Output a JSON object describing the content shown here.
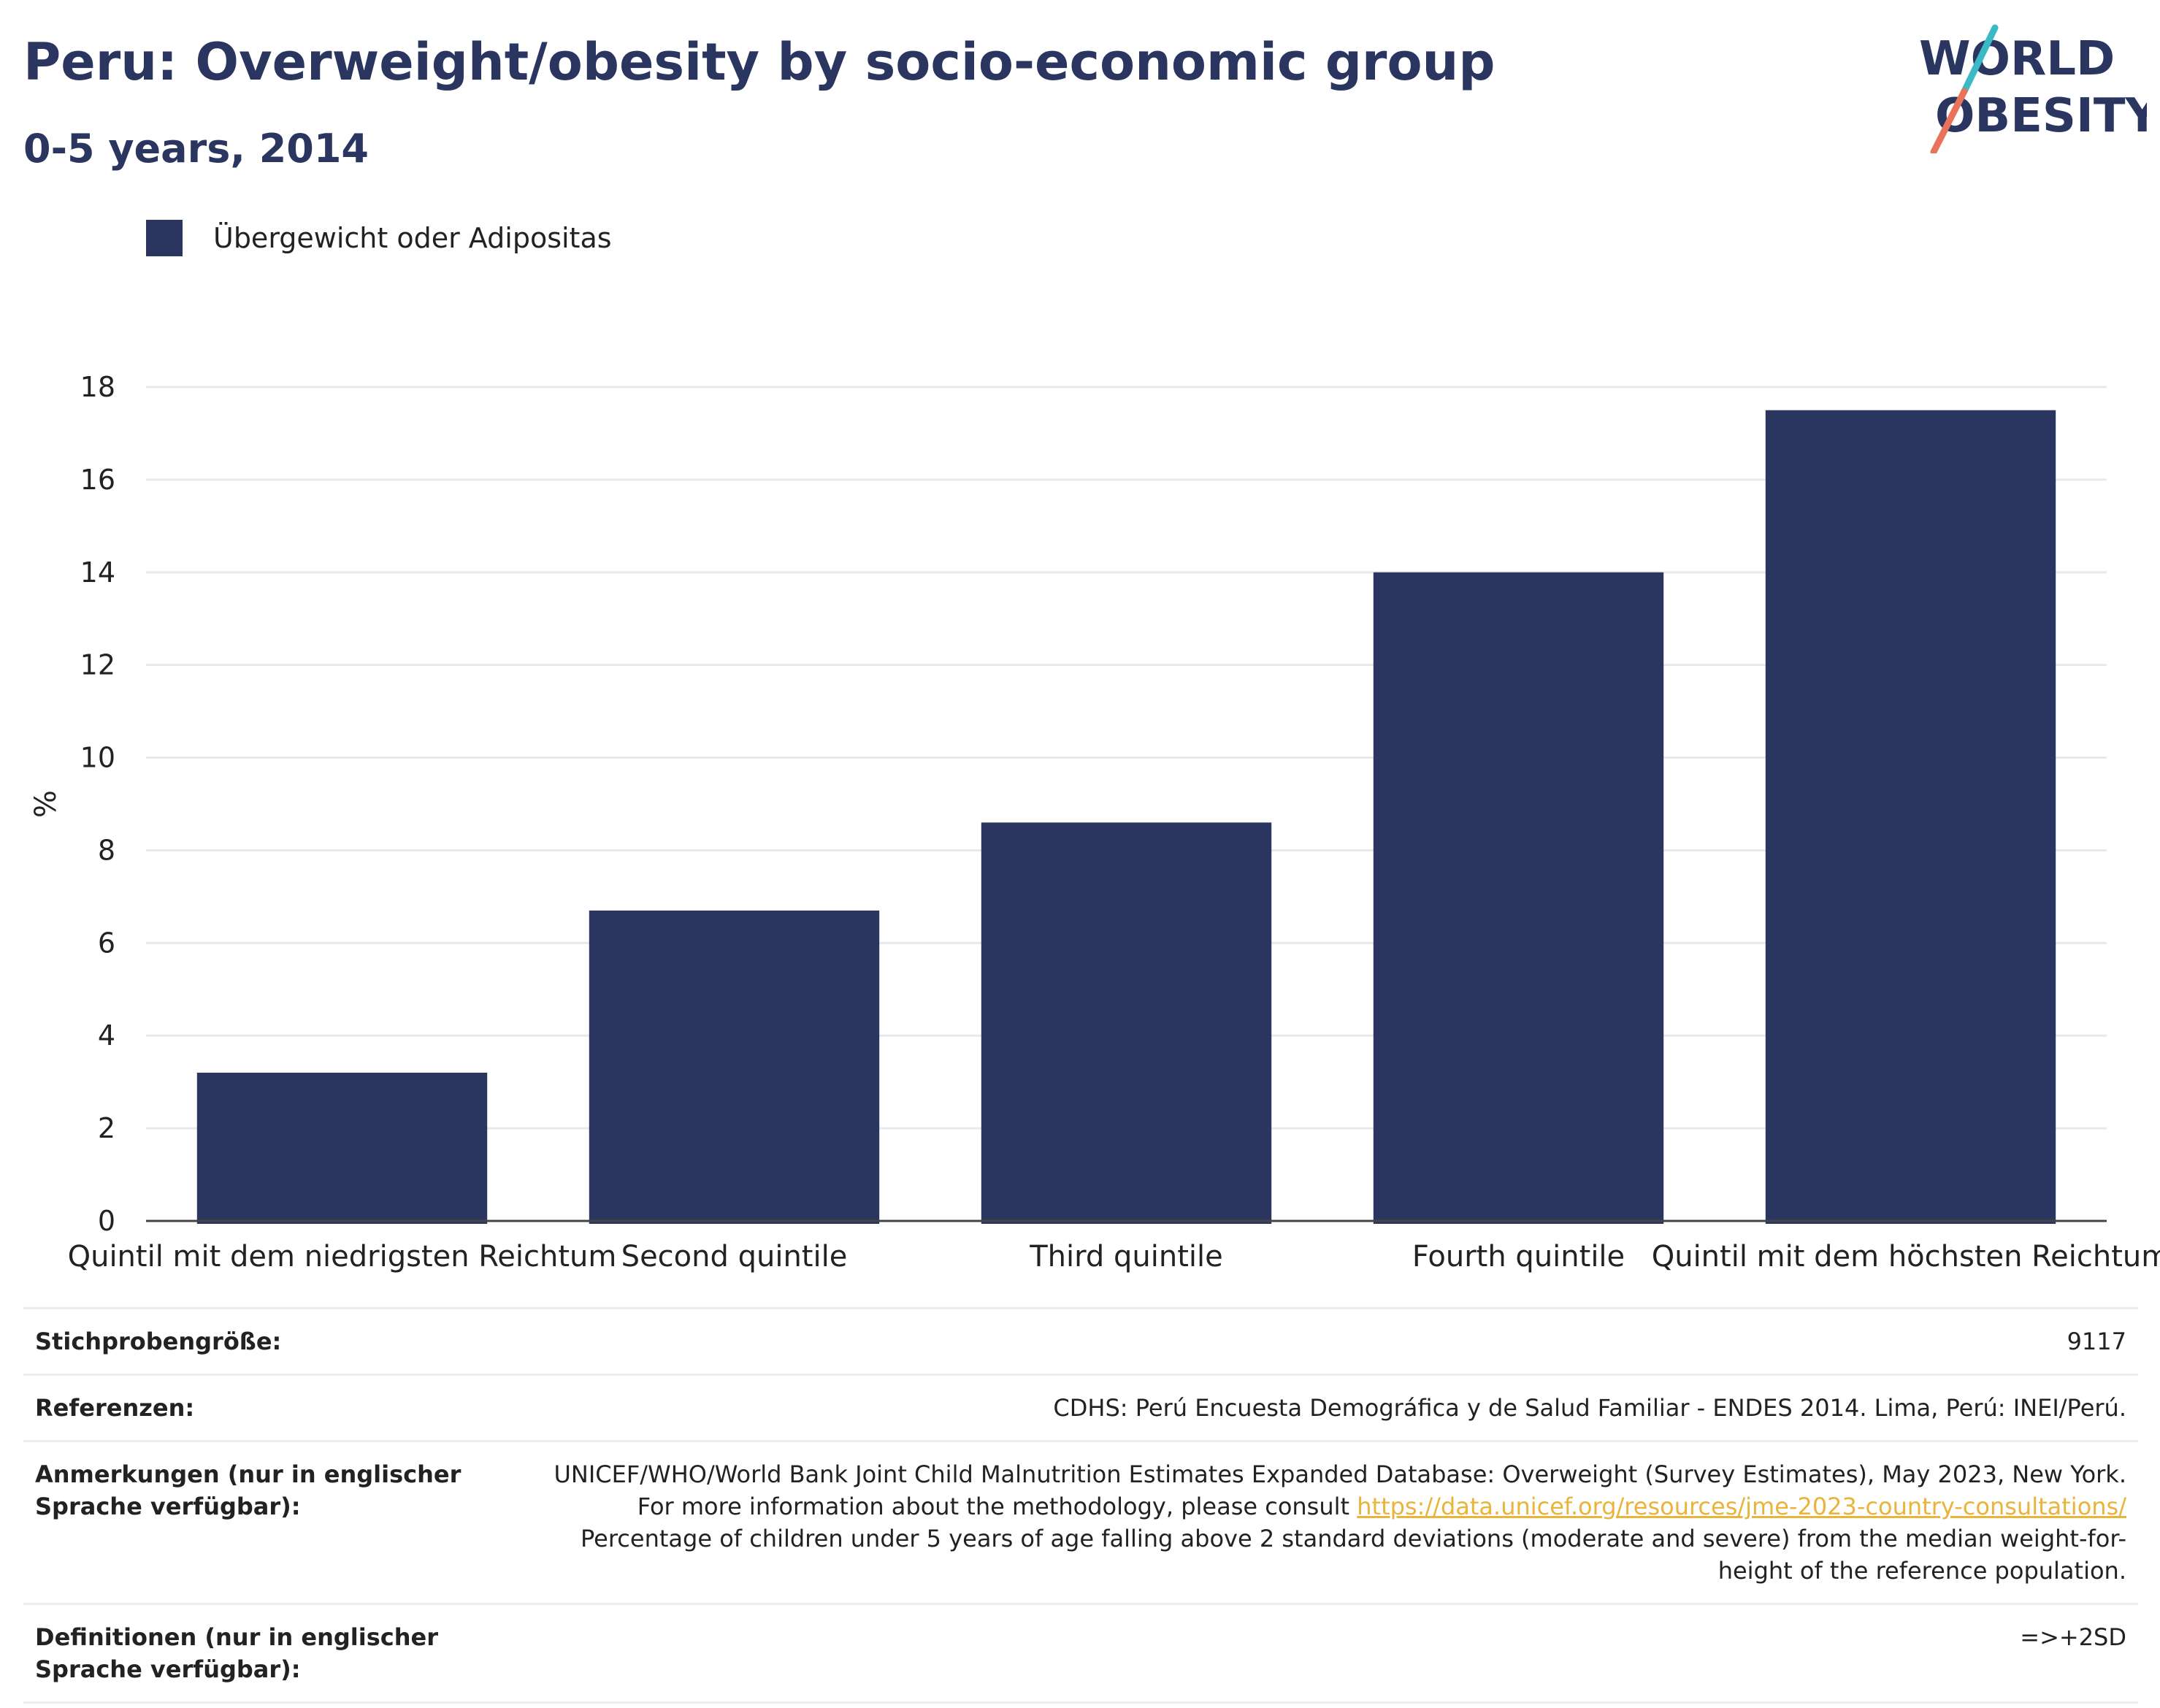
{
  "header": {
    "title": "Peru: Overweight/obesity by socio-economic group",
    "subtitle": "0-5 years, 2014"
  },
  "logo": {
    "line1": "WORLD",
    "line2": "OBESITY",
    "colors": {
      "text": "#2a3560",
      "slash_top": "#3bb9c4",
      "slash_bottom": "#e8735a"
    }
  },
  "legend": {
    "label": "Übergewicht oder Adipositas",
    "color": "#2a3560"
  },
  "chart_data": {
    "type": "bar",
    "categories": [
      "Quintil mit dem niedrigsten Reichtum",
      "Second quintile",
      "Third quintile",
      "Fourth quintile",
      "Quintil mit dem höchsten Reichtum"
    ],
    "series": [
      {
        "name": "Übergewicht oder Adipositas",
        "values": [
          3.2,
          6.7,
          8.6,
          14.0,
          17.5
        ],
        "color": "#2a3560"
      }
    ],
    "ylabel": "%",
    "xlabel": "",
    "ylim": [
      0,
      18
    ],
    "yticks": [
      0,
      2,
      4,
      6,
      8,
      10,
      12,
      14,
      16,
      18
    ],
    "grid": true,
    "legend_position": "top-left"
  },
  "info": {
    "sample_size": {
      "label": "Stichprobengröße:",
      "value": "9117"
    },
    "references": {
      "label": "Referenzen:",
      "value": "CDHS: Perú Encuesta Demográfica y de Salud Familiar - ENDES 2014. Lima, Perú: INEI/Perú."
    },
    "notes": {
      "label": "Anmerkungen (nur in englischer Sprache verfügbar):",
      "text_before": "UNICEF/WHO/World Bank Joint Child Malnutrition Estimates Expanded Database: Overweight (Survey Estimates), May 2023, New York. For more information about the methodology, please consult ",
      "link": "https://data.unicef.org/resources/jme-2023-country-consultations/",
      "text_after": " Percentage of children under 5 years of age falling above 2 standard deviations (moderate and severe) from the median weight-for-height of the reference population."
    },
    "definitions": {
      "label": "Definitionen (nur in englischer Sprache verfügbar):",
      "value": "=>+2SD"
    }
  }
}
